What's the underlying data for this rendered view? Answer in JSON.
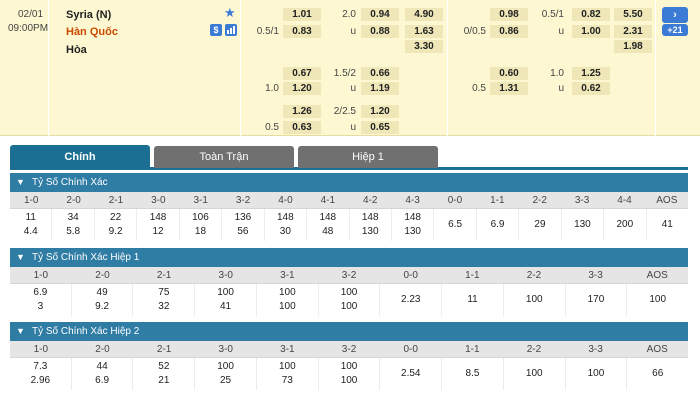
{
  "match": {
    "date": "02/01",
    "time": "09:00PM",
    "home_team": "Syria (N)",
    "away_team": "Hàn Quốc",
    "draw_label": "Hòa",
    "star_icon": "star-icon",
    "badges": [
      "$",
      "chart"
    ],
    "more_count": "+21",
    "expand_icon": "chevron-right-icon"
  },
  "fulltime_odds": {
    "row1": {
      "h1": "1.01",
      "ou_line": "2.0",
      "o1": "0.94",
      "x1": "4.90"
    },
    "row2": {
      "hline": "0.5/1",
      "h2": "0.83",
      "ou_label": "u",
      "o2": "0.88",
      "x2": "1.63"
    },
    "row3": {
      "x3": "3.30"
    },
    "alt1": {
      "h1": "0.67",
      "ou_line": "1.5/2",
      "o1": "0.66",
      "hline": "1.0",
      "h2": "1.20",
      "ou_label": "u",
      "o2": "1.19"
    },
    "alt2": {
      "h1": "1.26",
      "ou_line": "2/2.5",
      "o1": "1.20",
      "hline": "0.5",
      "h2": "0.63",
      "ou_label": "u",
      "o2": "0.65"
    }
  },
  "halftime_odds": {
    "row1": {
      "h1": "0.98",
      "ou_line": "0.5/1",
      "o1": "0.82",
      "x1": "5.50"
    },
    "row2": {
      "hline": "0/0.5",
      "h2": "0.86",
      "ou_label": "u",
      "o2": "1.00",
      "x2": "2.31"
    },
    "row3": {
      "x3": "1.98"
    },
    "alt1": {
      "h1": "0.60",
      "ou_line": "1.0",
      "o1": "1.25",
      "hline": "0.5",
      "h2": "1.31",
      "ou_label": "u",
      "o2": "0.62"
    }
  },
  "tabs": [
    "Chính",
    "Toàn Trận",
    "Hiệp 1"
  ],
  "sections": [
    {
      "title": "Tỷ Số Chính Xác",
      "headers": [
        "1-0",
        "2-0",
        "2-1",
        "3-0",
        "3-1",
        "3-2",
        "4-0",
        "4-1",
        "4-2",
        "4-3",
        "0-0",
        "1-1",
        "2-2",
        "3-3",
        "4-4",
        "AOS"
      ],
      "values": [
        [
          "11",
          "4.4"
        ],
        [
          "34",
          "5.8"
        ],
        [
          "22",
          "9.2"
        ],
        [
          "148",
          "12"
        ],
        [
          "106",
          "18"
        ],
        [
          "136",
          "56"
        ],
        [
          "148",
          "30"
        ],
        [
          "148",
          "48"
        ],
        [
          "148",
          "130"
        ],
        [
          "148",
          "130"
        ],
        [
          "6.5"
        ],
        [
          "6.9"
        ],
        [
          "29"
        ],
        [
          "130"
        ],
        [
          "200"
        ],
        [
          "41"
        ]
      ]
    },
    {
      "title": "Tỷ Số Chính Xác Hiệp 1",
      "headers": [
        "1-0",
        "2-0",
        "2-1",
        "3-0",
        "3-1",
        "3-2",
        "0-0",
        "1-1",
        "2-2",
        "3-3",
        "AOS"
      ],
      "values": [
        [
          "6.9",
          "3"
        ],
        [
          "49",
          "9.2"
        ],
        [
          "75",
          "32"
        ],
        [
          "100",
          "41"
        ],
        [
          "100",
          "100"
        ],
        [
          "100",
          "100"
        ],
        [
          "2.23"
        ],
        [
          "11"
        ],
        [
          "100"
        ],
        [
          "170"
        ],
        [
          "100"
        ]
      ]
    },
    {
      "title": "Tỷ Số Chính Xác Hiệp 2",
      "headers": [
        "1-0",
        "2-0",
        "2-1",
        "3-0",
        "3-1",
        "3-2",
        "0-0",
        "1-1",
        "2-2",
        "3-3",
        "AOS"
      ],
      "values": [
        [
          "7.3",
          "2.96"
        ],
        [
          "44",
          "6.9"
        ],
        [
          "52",
          "21"
        ],
        [
          "100",
          "25"
        ],
        [
          "100",
          "73"
        ],
        [
          "100",
          "100"
        ],
        [
          "2.54"
        ],
        [
          "8.5"
        ],
        [
          "100"
        ],
        [
          "100"
        ],
        [
          "66"
        ]
      ]
    }
  ],
  "colors": {
    "header_bg": "#fdf8d2",
    "accent": "#1a6f92",
    "section": "#2f7ca4",
    "away": "#c94a00"
  }
}
